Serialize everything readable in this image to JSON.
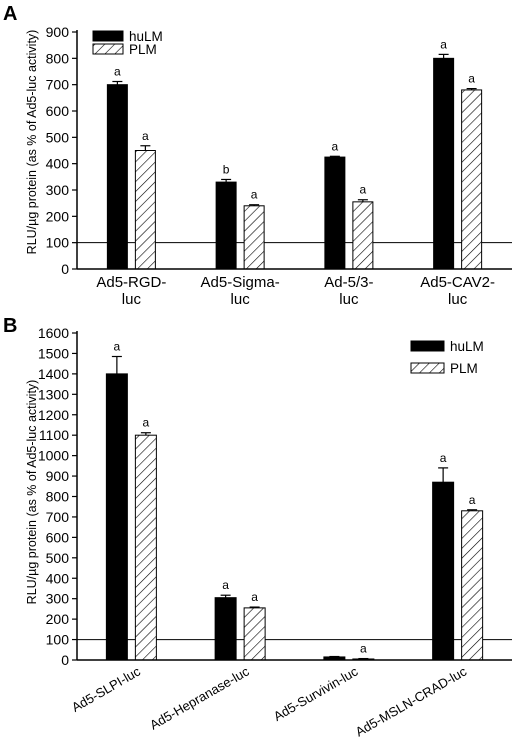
{
  "chart_data": [
    {
      "panel": "A",
      "type": "bar",
      "ylabel": "RLU/µg protein (as % of Ad5-luc activity)",
      "ylim": [
        0,
        900
      ],
      "yticks": [
        0,
        100,
        200,
        300,
        400,
        500,
        600,
        700,
        800,
        900
      ],
      "reference_line": 100,
      "categories": [
        [
          "Ad5-RGD-",
          "luc"
        ],
        [
          "Ad5-Sigma-",
          "luc"
        ],
        [
          "Ad-5/3-",
          "luc"
        ],
        [
          "Ad5-CAV2-",
          "luc"
        ]
      ],
      "series": [
        {
          "name": "huLM",
          "fill": "solid",
          "color": "#000000",
          "values": [
            700,
            330,
            425,
            800
          ],
          "errors": [
            12,
            10,
            3,
            15
          ],
          "labels": [
            "a",
            "b",
            "a",
            "a"
          ]
        },
        {
          "name": "PLM",
          "fill": "hatched",
          "color": "#000000",
          "values": [
            450,
            240,
            255,
            680
          ],
          "errors": [
            18,
            4,
            8,
            5
          ],
          "labels": [
            "a",
            "a",
            "a",
            "a"
          ]
        }
      ],
      "legend": "top-left"
    },
    {
      "panel": "B",
      "type": "bar",
      "ylabel": "RLU/µg protein (as % of Ad5-luc activity)",
      "ylim": [
        0,
        1600
      ],
      "yticks": [
        0,
        100,
        200,
        300,
        400,
        500,
        600,
        700,
        800,
        900,
        1000,
        1100,
        1200,
        1300,
        1400,
        1500,
        1600
      ],
      "reference_line": 100,
      "categories": [
        "Ad5-SLPI-luc",
        "Ad5-Hepranase-luc",
        "Ad5-Survivin-luc",
        "Ad5-MSLN-CRAD-luc"
      ],
      "series": [
        {
          "name": "huLM",
          "fill": "solid",
          "color": "#000000",
          "values": [
            1400,
            305,
            15,
            870
          ],
          "errors": [
            85,
            12,
            2,
            70
          ],
          "labels": [
            "a",
            "a",
            "",
            "a"
          ]
        },
        {
          "name": "PLM",
          "fill": "hatched",
          "color": "#000000",
          "values": [
            1100,
            255,
            5,
            730
          ],
          "errors": [
            12,
            4,
            2,
            5
          ],
          "labels": [
            "a",
            "a",
            "a",
            "a"
          ]
        }
      ],
      "legend": "top-right"
    }
  ]
}
